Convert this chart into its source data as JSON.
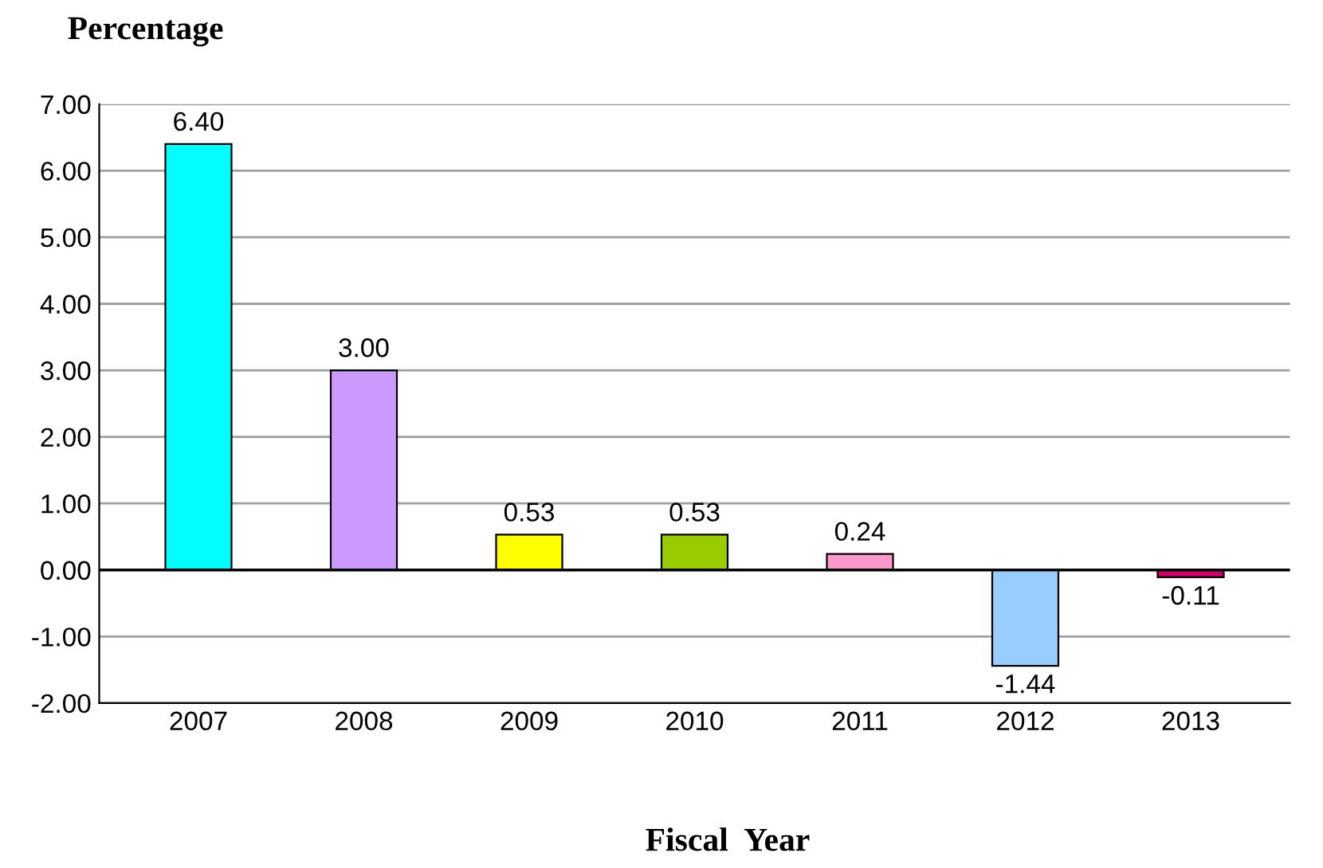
{
  "chart_data": {
    "type": "bar",
    "ylabel": "Percentage",
    "xlabel": "Fiscal  Year",
    "categories": [
      "2007",
      "2008",
      "2009",
      "2010",
      "2011",
      "2012",
      "2013"
    ],
    "values": [
      6.4,
      3.0,
      0.53,
      0.53,
      0.24,
      -1.44,
      -0.11
    ],
    "colors": [
      "#00ffff",
      "#cc99ff",
      "#ffff00",
      "#99cc00",
      "#ff99cc",
      "#99ccff",
      "#cc0066"
    ],
    "value_labels": [
      "6.40",
      "3.00",
      "0.53",
      "0.53",
      "0.24",
      "-1.44",
      "-0.11"
    ],
    "ylim": [
      -2,
      7
    ],
    "yticks": [
      {
        "value": -2,
        "label": "-2.00"
      },
      {
        "value": -1,
        "label": "-1.00"
      },
      {
        "value": 0,
        "label": "0.00"
      },
      {
        "value": 1,
        "label": "1.00"
      },
      {
        "value": 2,
        "label": "2.00"
      },
      {
        "value": 3,
        "label": "3.00"
      },
      {
        "value": 4,
        "label": "4.00"
      },
      {
        "value": 5,
        "label": "5.00"
      },
      {
        "value": 6,
        "label": "6.00"
      },
      {
        "value": 7,
        "label": "7.00"
      }
    ],
    "grid": "y",
    "legend": false
  }
}
